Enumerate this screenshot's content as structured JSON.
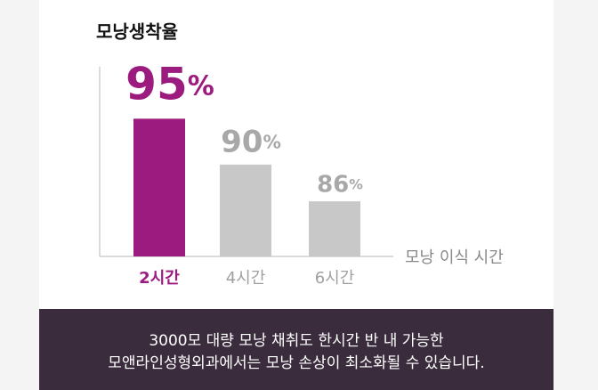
{
  "chart_data": {
    "type": "bar",
    "title": "모낭생착율",
    "categories": [
      "2시간",
      "4시간",
      "6시간"
    ],
    "values": [
      95,
      90,
      86
    ],
    "value_labels": [
      "95%",
      "90%",
      "86%"
    ],
    "colors": [
      "#9b1b7e",
      "#c8c8c8",
      "#c8c8c8"
    ],
    "x_label": "모낭 이식 시간",
    "ylim": [
      80,
      96
    ]
  },
  "footer": {
    "lines": [
      "3000모 대량 모낭 채취도 한시간 반 내 가능한",
      "모앤라인성형외과에서는 모낭 손상이 최소화될 수 있습니다."
    ]
  }
}
